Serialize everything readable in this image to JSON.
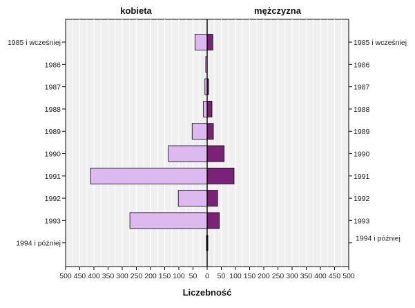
{
  "chart_data": {
    "type": "bar",
    "orientation": "horizontal",
    "layout": "back-to-back",
    "xlabel": "Liczebność",
    "categories": [
      "1985 i wcześniej",
      "1986",
      "1987",
      "1988",
      "1989",
      "1990",
      "1991",
      "1992",
      "1993",
      "1994 i później"
    ],
    "series": [
      {
        "name": "kobieta",
        "color": "#dcbaf0",
        "values": [
          43,
          5,
          8,
          13,
          53,
          137,
          412,
          102,
          273,
          0
        ]
      },
      {
        "name": "mężczyzna",
        "color": "#7b2278",
        "values": [
          20,
          0,
          5,
          17,
          22,
          60,
          95,
          37,
          43,
          0
        ]
      }
    ],
    "xlim": [
      0,
      500
    ],
    "xticks": [
      500,
      450,
      400,
      350,
      300,
      250,
      200,
      150,
      100,
      50,
      0,
      50,
      100,
      150,
      200,
      250,
      300,
      350,
      400,
      450,
      500
    ],
    "grid": true,
    "background": "#f0f0f0"
  }
}
